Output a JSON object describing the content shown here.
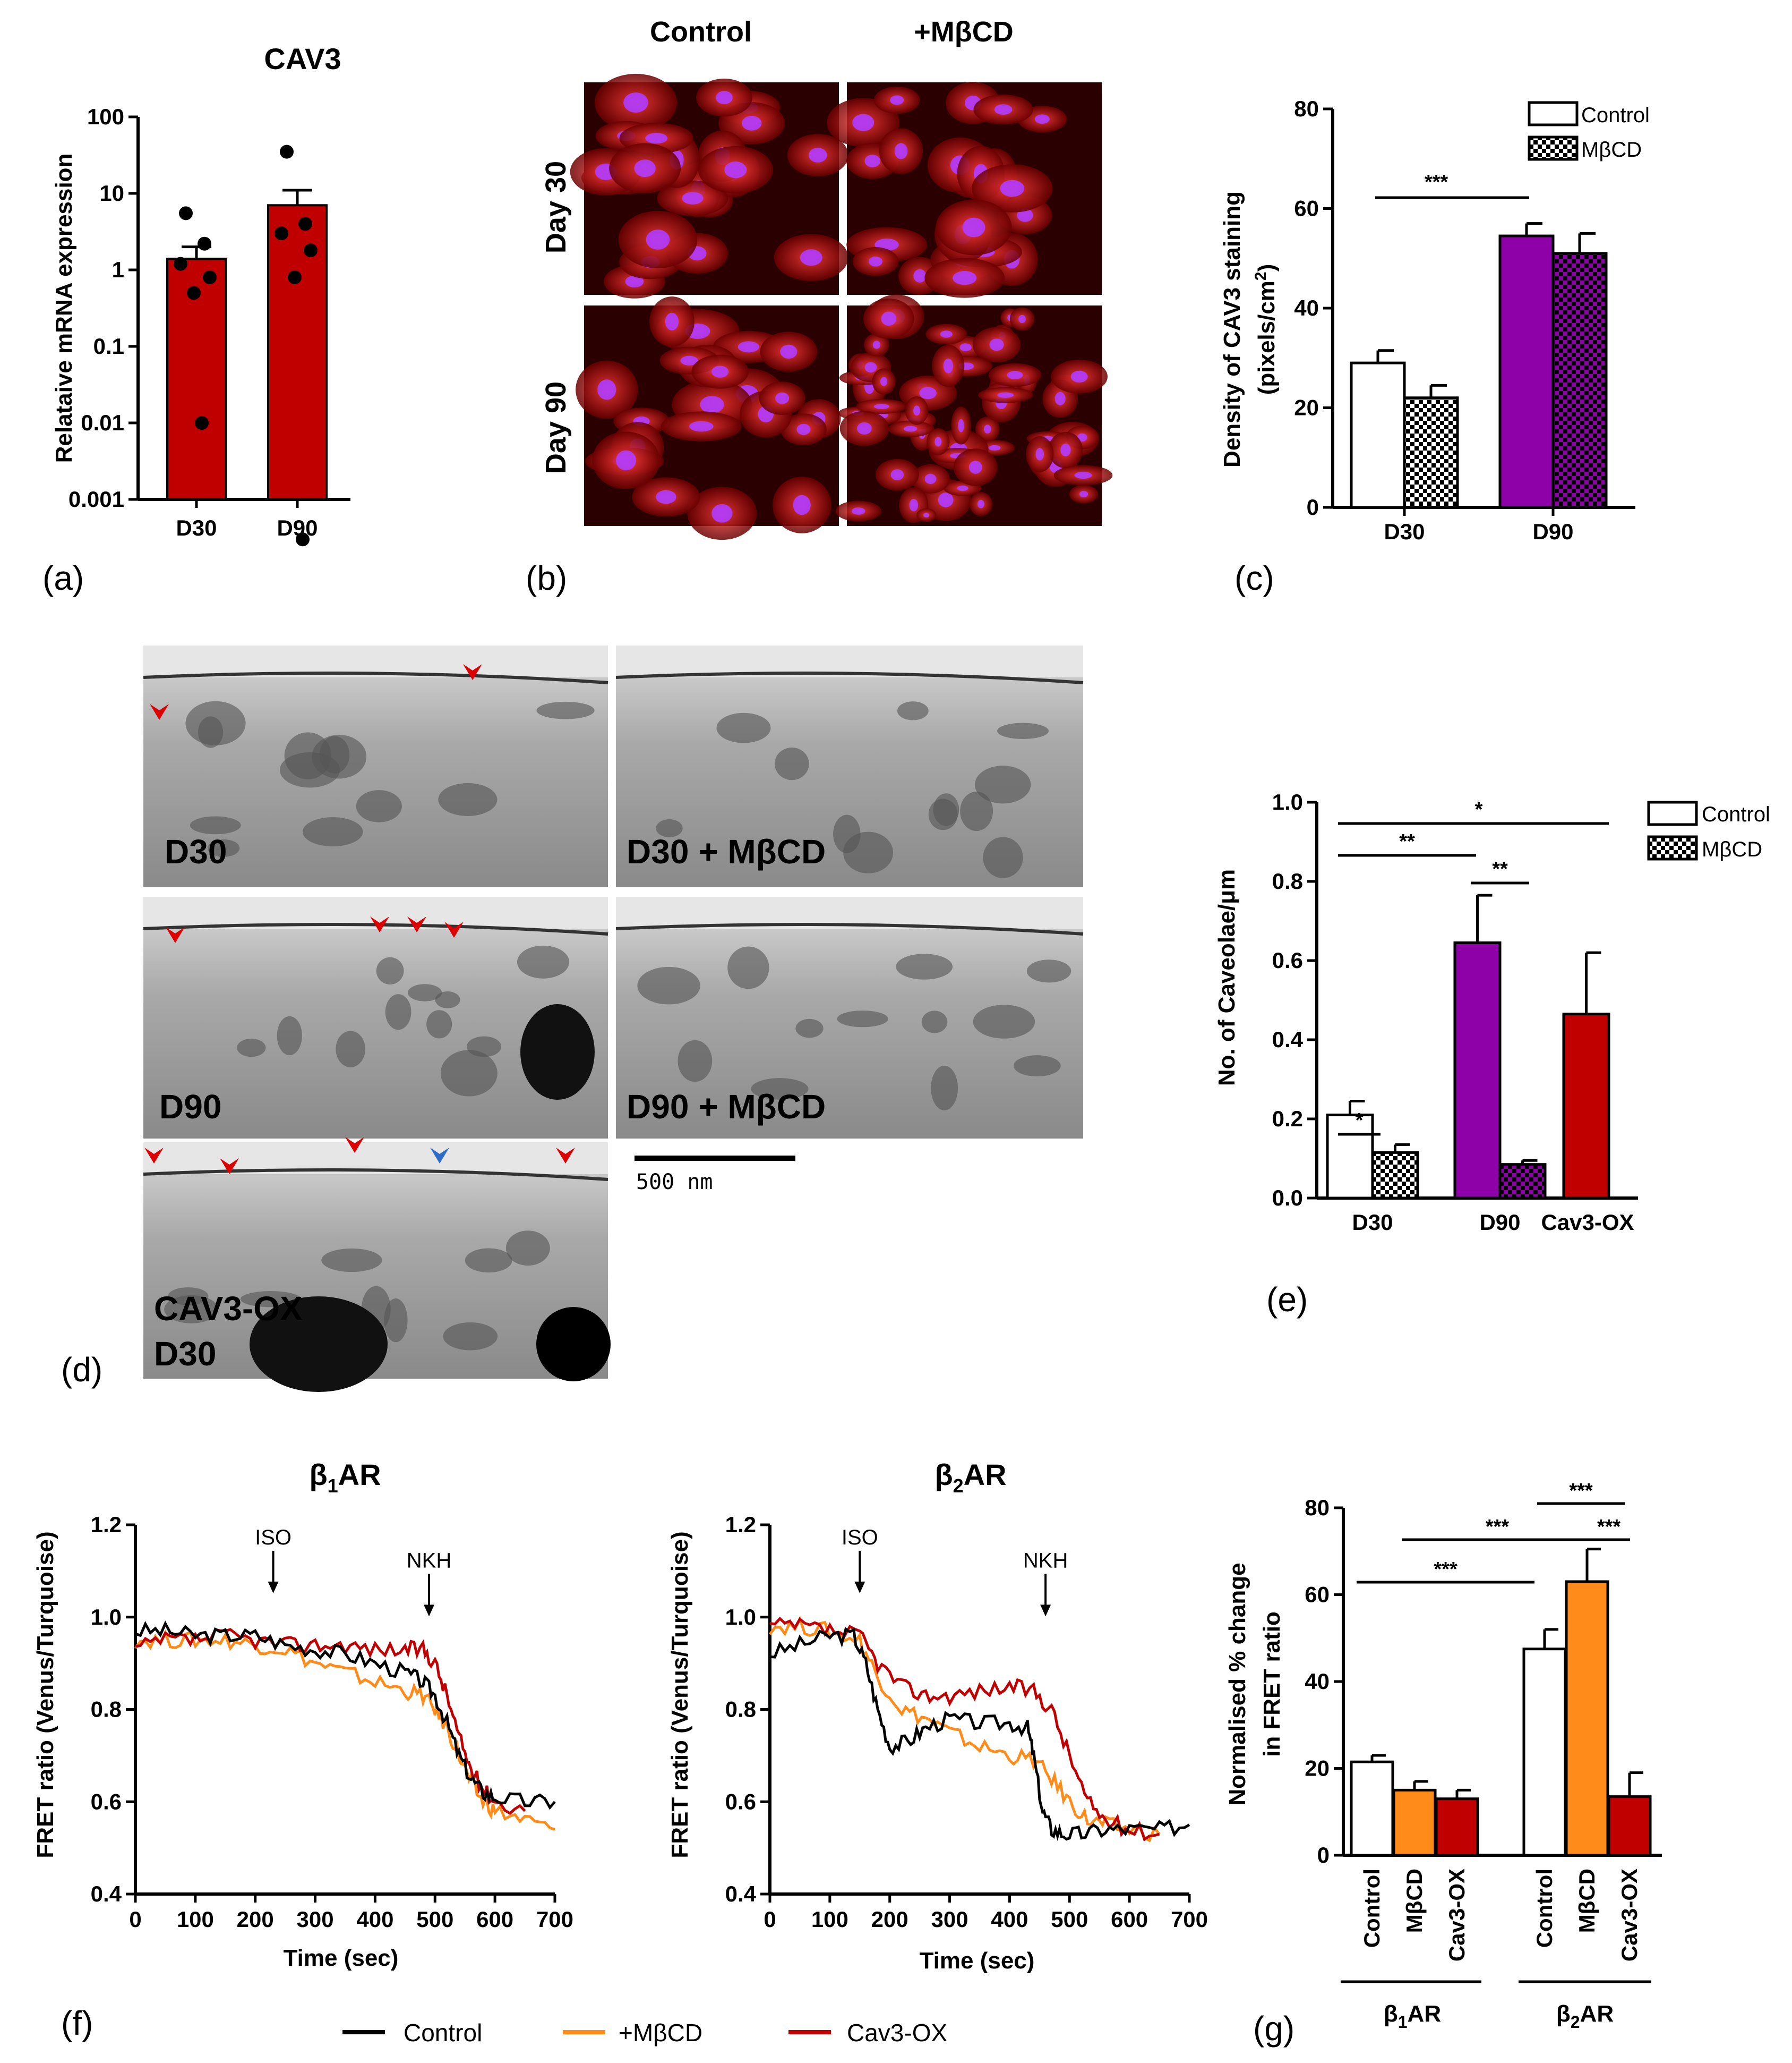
{
  "colors": {
    "control": "#ffffff",
    "d30_red": "#c00000",
    "purple": "#8e00a8",
    "orange": "#ff8c1a",
    "darkred": "#c00000",
    "black": "#000000"
  },
  "panel_labels": {
    "a": "(a)",
    "b": "(b)",
    "c": "(c)",
    "d": "(d)",
    "e": "(e)",
    "f": "(f)",
    "g": "(g)"
  },
  "panel_b": {
    "col_control": "Control",
    "col_mbcd": "+MβCD",
    "row_day30": "Day 30",
    "row_day90": "Day 90"
  },
  "panel_d": {
    "labels": [
      "D30",
      "D30 + MβCD",
      "D90",
      "D90 + MβCD",
      "CAV3-OX",
      "D30"
    ],
    "scalebar": "500 nm"
  },
  "legend_bottom": {
    "control": "Control",
    "mbcd": "+MβCD",
    "cav3": "Cav3-OX"
  },
  "chart_data": [
    {
      "type": "bar",
      "panel": "a",
      "title": "CAV3",
      "ylabel": "Relataive mRNA expression",
      "yscale": "log",
      "ylim": [
        0.001,
        100
      ],
      "yticks": [
        "0.001",
        "0.01",
        "0.1",
        "1",
        "10",
        "100"
      ],
      "categories": [
        "D30",
        "D90"
      ],
      "values": [
        1.4,
        7.0
      ],
      "errors": [
        0.6,
        4.0
      ],
      "points": [
        [
          5.5,
          2.2,
          1.2,
          0.8,
          0.5,
          0.01
        ],
        [
          35,
          4.0,
          3.0,
          1.8,
          0.8,
          0.0003
        ]
      ]
    },
    {
      "type": "bar",
      "panel": "c",
      "ylabel": "Density of CAV3 staining",
      "ylabel2": "(pixels/cm",
      "ylim": [
        0,
        80
      ],
      "yticks": [
        "0",
        "20",
        "40",
        "60",
        "80"
      ],
      "categories": [
        "D30",
        "D90"
      ],
      "series": [
        {
          "name": "Control",
          "values": [
            29,
            54.5
          ],
          "errors": [
            2.5,
            2.5
          ]
        },
        {
          "name": "MβCD",
          "values": [
            22,
            51
          ],
          "errors": [
            2.5,
            4
          ]
        }
      ],
      "significance": [
        "***"
      ]
    },
    {
      "type": "bar",
      "panel": "e",
      "ylabel": "No. of Caveolae/μm",
      "ylim": [
        0,
        1.0
      ],
      "yticks": [
        "0.0",
        "0.2",
        "0.4",
        "0.6",
        "0.8",
        "1.0"
      ],
      "categories": [
        "D30",
        "D90",
        "Cav3-OX"
      ],
      "series": [
        {
          "name": "Control",
          "values": [
            0.21,
            0.645,
            0.465
          ],
          "errors": [
            0.035,
            0.12,
            0.155
          ]
        },
        {
          "name": "MβCD",
          "values": [
            0.115,
            0.085,
            null
          ],
          "errors": [
            0.02,
            0.01,
            null
          ]
        }
      ],
      "significance": [
        "*",
        "**",
        "**",
        "*"
      ]
    },
    {
      "type": "line",
      "panel": "f1",
      "title_main": "β",
      "title_sub": "1",
      "title_rest": "AR",
      "xlabel": "Time (sec)",
      "ylabel": "FRET ratio (Venus/Turquoise)",
      "xlim": [
        0,
        700
      ],
      "ylim": [
        0.4,
        1.2
      ],
      "xticks": [
        "0",
        "100",
        "200",
        "300",
        "400",
        "500",
        "600",
        "700"
      ],
      "yticks": [
        "0.4",
        "0.6",
        "0.8",
        "1.0",
        "1.2"
      ],
      "annotations": [
        {
          "text": "ISO",
          "x": 230
        },
        {
          "text": "NKH",
          "x": 490
        }
      ],
      "series": [
        {
          "name": "Control",
          "x": [
            0,
            50,
            100,
            150,
            200,
            250,
            300,
            350,
            400,
            450,
            480,
            500,
            520,
            540,
            560,
            580,
            600,
            650,
            700
          ],
          "y": [
            0.97,
            0.97,
            0.96,
            0.96,
            0.96,
            0.94,
            0.93,
            0.92,
            0.9,
            0.88,
            0.86,
            0.83,
            0.77,
            0.7,
            0.65,
            0.62,
            0.61,
            0.6,
            0.6
          ]
        },
        {
          "name": "+MβCD",
          "x": [
            0,
            50,
            100,
            150,
            200,
            250,
            300,
            350,
            400,
            450,
            480,
            500,
            520,
            540,
            560,
            580,
            600,
            650,
            700
          ],
          "y": [
            0.95,
            0.95,
            0.95,
            0.95,
            0.94,
            0.93,
            0.9,
            0.88,
            0.86,
            0.84,
            0.83,
            0.8,
            0.76,
            0.7,
            0.64,
            0.6,
            0.58,
            0.56,
            0.54
          ]
        },
        {
          "name": "Cav3-OX",
          "x": [
            0,
            50,
            100,
            150,
            200,
            250,
            300,
            350,
            400,
            450,
            480,
            500,
            520,
            540,
            560,
            580,
            600,
            650
          ],
          "y": [
            0.93,
            0.95,
            0.95,
            0.96,
            0.95,
            0.94,
            0.94,
            0.94,
            0.93,
            0.93,
            0.93,
            0.9,
            0.83,
            0.74,
            0.67,
            0.63,
            0.6,
            0.58
          ]
        }
      ]
    },
    {
      "type": "line",
      "panel": "f2",
      "title_main": "β",
      "title_sub": "2",
      "title_rest": "AR",
      "xlabel": "Time (sec)",
      "ylabel": "FRET ratio (Venus/Turquoise)",
      "xlim": [
        0,
        700
      ],
      "ylim": [
        0.4,
        1.2
      ],
      "xticks": [
        "0",
        "100",
        "200",
        "300",
        "400",
        "500",
        "600",
        "700"
      ],
      "yticks": [
        "0.4",
        "0.6",
        "0.8",
        "1.0",
        "1.2"
      ],
      "annotations": [
        {
          "text": "ISO",
          "x": 150
        },
        {
          "text": "NKH",
          "x": 460
        }
      ],
      "series": [
        {
          "name": "Control",
          "x": [
            0,
            50,
            100,
            140,
            160,
            180,
            200,
            230,
            260,
            300,
            350,
            400,
            430,
            440,
            455,
            470,
            490,
            520,
            560,
            600,
            650,
            700
          ],
          "y": [
            0.92,
            0.94,
            0.96,
            0.96,
            0.9,
            0.8,
            0.72,
            0.73,
            0.76,
            0.78,
            0.77,
            0.77,
            0.76,
            0.7,
            0.58,
            0.54,
            0.53,
            0.53,
            0.54,
            0.54,
            0.54,
            0.55
          ]
        },
        {
          "name": "+MβCD",
          "x": [
            0,
            50,
            100,
            150,
            180,
            220,
            260,
            300,
            350,
            400,
            440,
            470,
            500,
            530,
            560,
            600,
            650
          ],
          "y": [
            0.98,
            0.98,
            0.97,
            0.95,
            0.87,
            0.8,
            0.78,
            0.75,
            0.72,
            0.7,
            0.69,
            0.65,
            0.6,
            0.56,
            0.55,
            0.54,
            0.53
          ]
        },
        {
          "name": "Cav3-OX",
          "x": [
            0,
            50,
            100,
            150,
            180,
            220,
            260,
            300,
            350,
            400,
            440,
            470,
            500,
            530,
            560,
            600,
            650
          ],
          "y": [
            0.98,
            0.98,
            0.97,
            0.96,
            0.9,
            0.85,
            0.83,
            0.83,
            0.84,
            0.85,
            0.84,
            0.8,
            0.7,
            0.6,
            0.56,
            0.54,
            0.53
          ]
        }
      ]
    },
    {
      "type": "bar",
      "panel": "g",
      "ylabel": "Normalised % change",
      "ylabel2": "in FRET ratio",
      "ylim": [
        0,
        80
      ],
      "yticks": [
        "0",
        "20",
        "40",
        "60",
        "80"
      ],
      "categories": [
        "Control",
        "MβCD",
        "Cav3-OX",
        "Control",
        "MβCD",
        "Cav3-OX"
      ],
      "groups": [
        {
          "label_main": "β",
          "label_sub": "1",
          "label_rest": "AR"
        },
        {
          "label_main": "β",
          "label_sub": "2",
          "label_rest": "AR"
        }
      ],
      "values": [
        21.5,
        15,
        13,
        47.5,
        63,
        13.5
      ],
      "errors": [
        1.5,
        2,
        2,
        4.5,
        7.5,
        5.5
      ],
      "significance": [
        "***",
        "***",
        "***",
        "***"
      ]
    }
  ]
}
